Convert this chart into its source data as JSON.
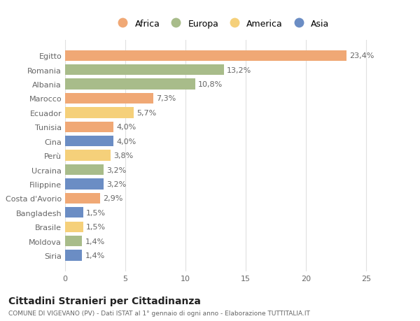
{
  "categories": [
    "Egitto",
    "Romania",
    "Albania",
    "Marocco",
    "Ecuador",
    "Tunisia",
    "Cina",
    "Perù",
    "Ucraina",
    "Filippine",
    "Costa d'Avorio",
    "Bangladesh",
    "Brasile",
    "Moldova",
    "Siria"
  ],
  "values": [
    23.4,
    13.2,
    10.8,
    7.3,
    5.7,
    4.0,
    4.0,
    3.8,
    3.2,
    3.2,
    2.9,
    1.5,
    1.5,
    1.4,
    1.4
  ],
  "labels": [
    "23,4%",
    "13,2%",
    "10,8%",
    "7,3%",
    "5,7%",
    "4,0%",
    "4,0%",
    "3,8%",
    "3,2%",
    "3,2%",
    "2,9%",
    "1,5%",
    "1,5%",
    "1,4%",
    "1,4%"
  ],
  "continent": [
    "Africa",
    "Europa",
    "Europa",
    "Africa",
    "America",
    "Africa",
    "Asia",
    "America",
    "Europa",
    "Asia",
    "Africa",
    "Asia",
    "America",
    "Europa",
    "Asia"
  ],
  "colors": {
    "Africa": "#F0A875",
    "Europa": "#A8BC8A",
    "America": "#F5D07A",
    "Asia": "#6B8DC4"
  },
  "legend_order": [
    "Africa",
    "Europa",
    "America",
    "Asia"
  ],
  "xlim": [
    0,
    26
  ],
  "xticks": [
    0,
    5,
    10,
    15,
    20,
    25
  ],
  "bg_color": "#ffffff",
  "grid_color": "#e0e0e0",
  "title": "Cittadini Stranieri per Cittadinanza",
  "subtitle": "COMUNE DI VIGEVANO (PV) - Dati ISTAT al 1° gennaio di ogni anno - Elaborazione TUTTITALIA.IT",
  "bar_height": 0.75,
  "label_fontsize": 8.0,
  "tick_fontsize": 8.0,
  "legend_fontsize": 9.0
}
